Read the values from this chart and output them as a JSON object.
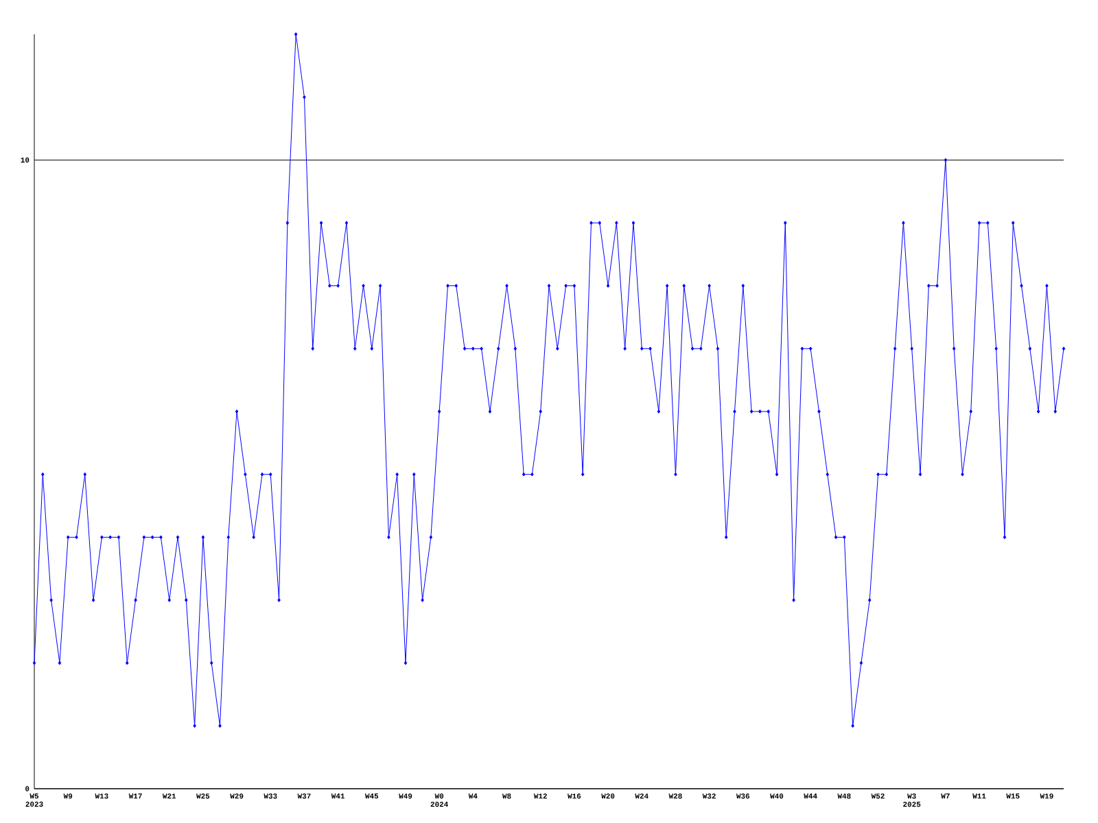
{
  "chart_data": {
    "type": "line",
    "categories": [
      "W5 2023",
      null,
      null,
      null,
      "W9",
      null,
      null,
      null,
      "W13",
      null,
      null,
      null,
      "W17",
      null,
      null,
      null,
      "W21",
      null,
      null,
      null,
      "W25",
      null,
      null,
      null,
      "W29",
      null,
      null,
      null,
      "W33",
      null,
      null,
      null,
      "W37",
      null,
      null,
      null,
      "W41",
      null,
      null,
      null,
      "W45",
      null,
      null,
      null,
      "W49",
      null,
      null,
      null,
      "W0 2024",
      null,
      null,
      null,
      "W4",
      null,
      null,
      null,
      "W8",
      null,
      null,
      null,
      "W12",
      null,
      null,
      null,
      "W16",
      null,
      null,
      null,
      "W20",
      null,
      null,
      null,
      "W24",
      null,
      null,
      null,
      "W28",
      null,
      null,
      null,
      "W32",
      null,
      null,
      null,
      "W36",
      null,
      null,
      null,
      "W40",
      null,
      null,
      null,
      "W44",
      null,
      null,
      null,
      "W48",
      null,
      null,
      null,
      "W52",
      null,
      null,
      null,
      "W3 2025",
      null,
      null,
      null,
      "W7",
      null,
      null,
      null,
      "W11",
      null,
      null,
      null,
      "W15",
      null,
      null,
      null,
      "W19",
      null,
      null
    ],
    "series": [
      {
        "color": "#0000ff",
        "values": [
          2,
          5,
          3,
          2,
          4,
          4,
          5,
          3,
          4,
          4,
          4,
          2,
          3,
          4,
          4,
          4,
          3,
          4,
          3,
          1,
          4,
          2,
          1,
          4,
          6,
          5,
          4,
          5,
          5,
          3,
          9,
          12,
          11,
          7,
          9,
          8,
          8,
          9,
          7,
          8,
          7,
          8,
          4,
          5,
          2,
          5,
          3,
          4,
          6,
          8,
          8,
          7,
          7,
          7,
          6,
          7,
          8,
          7,
          5,
          5,
          6,
          8,
          7,
          8,
          8,
          5,
          9,
          9,
          8,
          9,
          7,
          9,
          7,
          7,
          6,
          8,
          5,
          8,
          7,
          7,
          8,
          7,
          4,
          6,
          8,
          6,
          6,
          6,
          5,
          9,
          3,
          7,
          7,
          6,
          5,
          4,
          4,
          1,
          2,
          3,
          5,
          5,
          7,
          9,
          7,
          5,
          8,
          8,
          10,
          7,
          5,
          6,
          9,
          9,
          7,
          4,
          9,
          8,
          7,
          6,
          8,
          6,
          7
        ]
      }
    ],
    "ylim": [
      0,
      12
    ],
    "yticks": [
      0,
      10
    ],
    "grid": "y",
    "marker": "diamond",
    "line_style": "solid"
  }
}
